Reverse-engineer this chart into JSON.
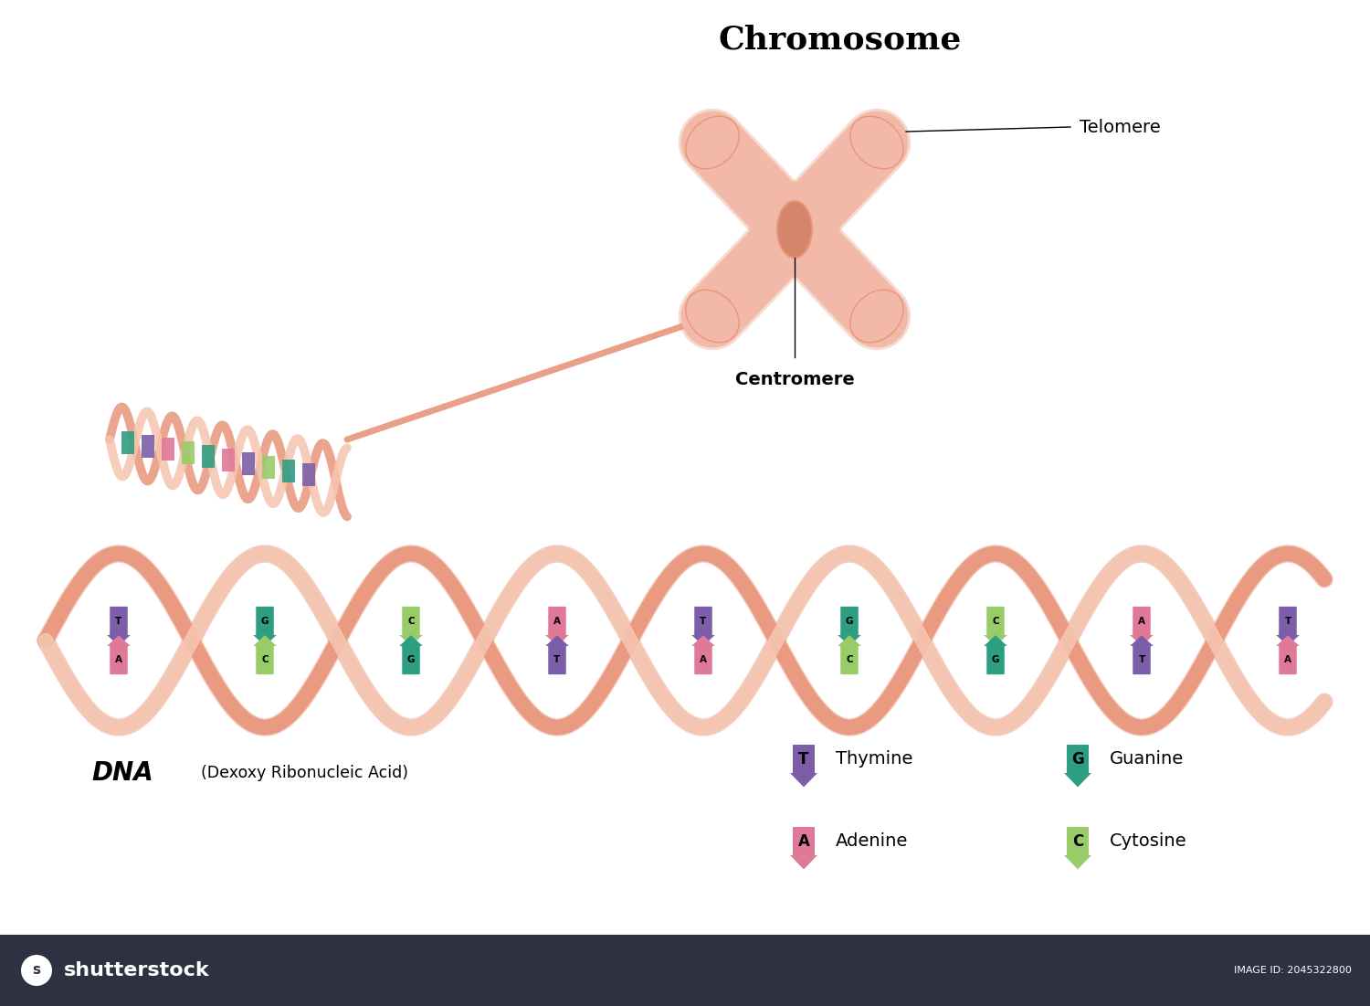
{
  "title": "Chromosome",
  "dna_label": "DNA",
  "dna_sublabel": "(Dexoxy Ribonucleic Acid)",
  "chromosome_color": "#F2B9A8",
  "chromosome_dark": "#E8957A",
  "centromere_color": "#D4856A",
  "dna_strand1": "#E8957A",
  "dna_strand2": "#F5C5B0",
  "background_color": "#FFFFFF",
  "base_colors": {
    "T": "#7B5EA7",
    "A": "#E07898",
    "G": "#2E9E82",
    "C": "#98CC68"
  },
  "bottom_bar_color": "#2D3142",
  "centromere_label": "Centromere",
  "telomere_label": "Telomere",
  "legend_items": [
    {
      "letter": "T",
      "name": "Thymine",
      "color": "#7B5EA7"
    },
    {
      "letter": "A",
      "name": "Adenine",
      "color": "#E07898"
    },
    {
      "letter": "G",
      "name": "Guanine",
      "color": "#2E9E82"
    },
    {
      "letter": "C",
      "name": "Cytosine",
      "color": "#98CC68"
    }
  ],
  "fig_width": 15.0,
  "fig_height": 11.01,
  "dpi": 100
}
